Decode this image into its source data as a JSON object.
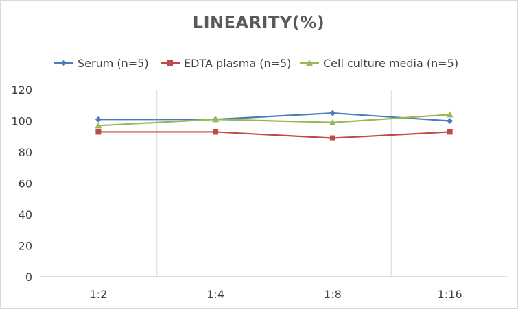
{
  "chart_data": {
    "type": "line",
    "title": "LINEARITY(%)",
    "xlabel": "",
    "ylabel": "",
    "categories": [
      "1:2",
      "1:4",
      "1:8",
      "1:16"
    ],
    "ylim": [
      0,
      120
    ],
    "yticks": [
      0,
      20,
      40,
      60,
      80,
      100,
      120
    ],
    "grid": "vertical",
    "legend_position": "top",
    "series": [
      {
        "name": "Serum (n=5)",
        "values": [
          101,
          101,
          105,
          100
        ],
        "color": "#4a7ebb",
        "marker": "diamond"
      },
      {
        "name": "EDTA plasma (n=5)",
        "values": [
          93,
          93,
          89,
          93
        ],
        "color": "#be4b48",
        "marker": "square"
      },
      {
        "name": "Cell culture media (n=5)",
        "values": [
          97,
          101,
          99,
          104
        ],
        "color": "#98b954",
        "marker": "triangle"
      }
    ]
  }
}
